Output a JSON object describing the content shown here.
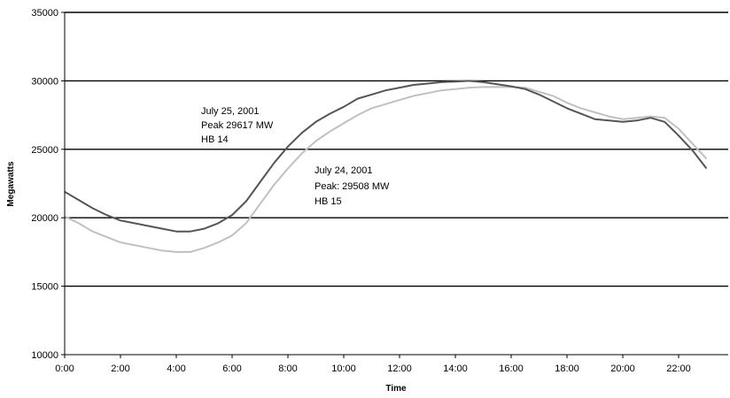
{
  "chart_data": {
    "type": "line",
    "title": "",
    "xlabel": "Time",
    "ylabel": "Megawatts",
    "ylim": [
      10000,
      35000
    ],
    "xlim": [
      0,
      24
    ],
    "x_ticks": [
      "0:00",
      "2:00",
      "4:00",
      "6:00",
      "8:00",
      "10:00",
      "12:00",
      "14:00",
      "16:00",
      "18:00",
      "20:00",
      "22:00"
    ],
    "y_ticks": [
      "10000",
      "15000",
      "20000",
      "25000",
      "30000",
      "35000"
    ],
    "grid": "horizontal",
    "legend": "none",
    "series": [
      {
        "color": "#555555",
        "x": [
          0,
          0.5,
          1,
          1.5,
          2,
          2.5,
          3,
          3.5,
          4,
          4.5,
          5,
          5.5,
          6,
          6.5,
          7,
          7.5,
          8,
          8.5,
          9,
          9.5,
          10,
          10.5,
          11,
          11.5,
          12,
          12.5,
          13,
          13.5,
          14,
          14.5,
          15,
          15.5,
          16,
          16.5,
          17,
          17.5,
          18,
          18.5,
          19,
          19.5,
          20,
          20.5,
          21,
          21.5,
          22,
          22.5,
          23
        ],
        "values": [
          21900,
          21300,
          20700,
          20200,
          19800,
          19600,
          19400,
          19200,
          19000,
          19000,
          19200,
          19600,
          20200,
          21200,
          22600,
          24000,
          25200,
          26200,
          27000,
          27600,
          28100,
          28700,
          29000,
          29300,
          29500,
          29700,
          29800,
          29900,
          29950,
          30000,
          29900,
          29750,
          29600,
          29400,
          29000,
          28500,
          28000,
          27600,
          27200,
          27100,
          27000,
          27100,
          27300,
          27000,
          26000,
          24900,
          23600
        ]
      },
      {
        "color": "#c0c0c0",
        "x": [
          0,
          0.5,
          1,
          1.5,
          2,
          2.5,
          3,
          3.5,
          4,
          4.5,
          5,
          5.5,
          6,
          6.5,
          7,
          7.5,
          8,
          8.5,
          9,
          9.5,
          10,
          10.5,
          11,
          11.5,
          12,
          12.5,
          13,
          13.5,
          14,
          14.5,
          15,
          15.5,
          16,
          16.5,
          17,
          17.5,
          18,
          18.5,
          19,
          19.5,
          20,
          20.5,
          21,
          21.5,
          22,
          22.5,
          23
        ],
        "values": [
          20100,
          19600,
          19000,
          18600,
          18200,
          18000,
          17800,
          17600,
          17500,
          17500,
          17800,
          18200,
          18700,
          19600,
          21000,
          22400,
          23600,
          24700,
          25600,
          26300,
          26900,
          27500,
          28000,
          28300,
          28600,
          28900,
          29100,
          29300,
          29400,
          29500,
          29550,
          29560,
          29550,
          29500,
          29200,
          28900,
          28400,
          28000,
          27700,
          27400,
          27200,
          27300,
          27400,
          27300,
          26500,
          25400,
          24300
        ]
      }
    ],
    "annotations": [
      {
        "lines": [
          "July 25, 2001",
          "Peak 29617 MW",
          "HB 14"
        ]
      },
      {
        "lines": [
          "July 24, 2001",
          "Peak: 29508 MW",
          "HB 15"
        ]
      }
    ]
  }
}
